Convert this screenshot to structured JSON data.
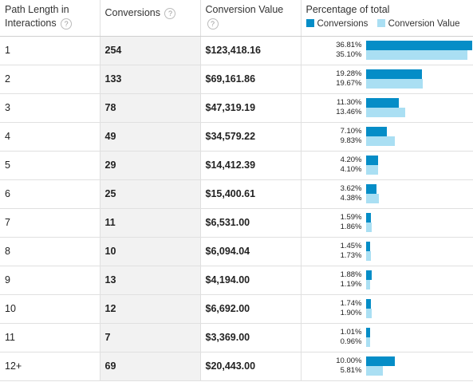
{
  "headers": {
    "path_length_line1": "Path Length in",
    "path_length_line2": "Interactions",
    "conversions": "Conversions",
    "conversion_value": "Conversion Value",
    "percentage": "Percentage of total",
    "legend_conversions": "Conversions",
    "legend_conversion_value": "Conversion Value",
    "help_glyph": "?"
  },
  "colors": {
    "conversions_bar": "#058dc7",
    "conversion_value_bar": "#aadff3",
    "selected_column_bg": "#f2f2f2"
  },
  "rows": [
    {
      "length": "1",
      "conversions": "254",
      "value": "$123,418.16",
      "pct_conv": "36.81%",
      "pct_val": "35.10%",
      "conv_frac": 0.3681,
      "val_frac": 0.351
    },
    {
      "length": "2",
      "conversions": "133",
      "value": "$69,161.86",
      "pct_conv": "19.28%",
      "pct_val": "19.67%",
      "conv_frac": 0.1928,
      "val_frac": 0.1967
    },
    {
      "length": "3",
      "conversions": "78",
      "value": "$47,319.19",
      "pct_conv": "11.30%",
      "pct_val": "13.46%",
      "conv_frac": 0.113,
      "val_frac": 0.1346
    },
    {
      "length": "4",
      "conversions": "49",
      "value": "$34,579.22",
      "pct_conv": "7.10%",
      "pct_val": "9.83%",
      "conv_frac": 0.071,
      "val_frac": 0.0983
    },
    {
      "length": "5",
      "conversions": "29",
      "value": "$14,412.39",
      "pct_conv": "4.20%",
      "pct_val": "4.10%",
      "conv_frac": 0.042,
      "val_frac": 0.041
    },
    {
      "length": "6",
      "conversions": "25",
      "value": "$15,400.61",
      "pct_conv": "3.62%",
      "pct_val": "4.38%",
      "conv_frac": 0.0362,
      "val_frac": 0.0438
    },
    {
      "length": "7",
      "conversions": "11",
      "value": "$6,531.00",
      "pct_conv": "1.59%",
      "pct_val": "1.86%",
      "conv_frac": 0.0159,
      "val_frac": 0.0186
    },
    {
      "length": "8",
      "conversions": "10",
      "value": "$6,094.04",
      "pct_conv": "1.45%",
      "pct_val": "1.73%",
      "conv_frac": 0.0145,
      "val_frac": 0.0173
    },
    {
      "length": "9",
      "conversions": "13",
      "value": "$4,194.00",
      "pct_conv": "1.88%",
      "pct_val": "1.19%",
      "conv_frac": 0.0188,
      "val_frac": 0.0119
    },
    {
      "length": "10",
      "conversions": "12",
      "value": "$6,692.00",
      "pct_conv": "1.74%",
      "pct_val": "1.90%",
      "conv_frac": 0.0174,
      "val_frac": 0.019
    },
    {
      "length": "11",
      "conversions": "7",
      "value": "$3,369.00",
      "pct_conv": "1.01%",
      "pct_val": "0.96%",
      "conv_frac": 0.0101,
      "val_frac": 0.0096
    },
    {
      "length": "12+",
      "conversions": "69",
      "value": "$20,443.00",
      "pct_conv": "10.00%",
      "pct_val": "5.81%",
      "conv_frac": 0.1,
      "val_frac": 0.0581
    }
  ]
}
